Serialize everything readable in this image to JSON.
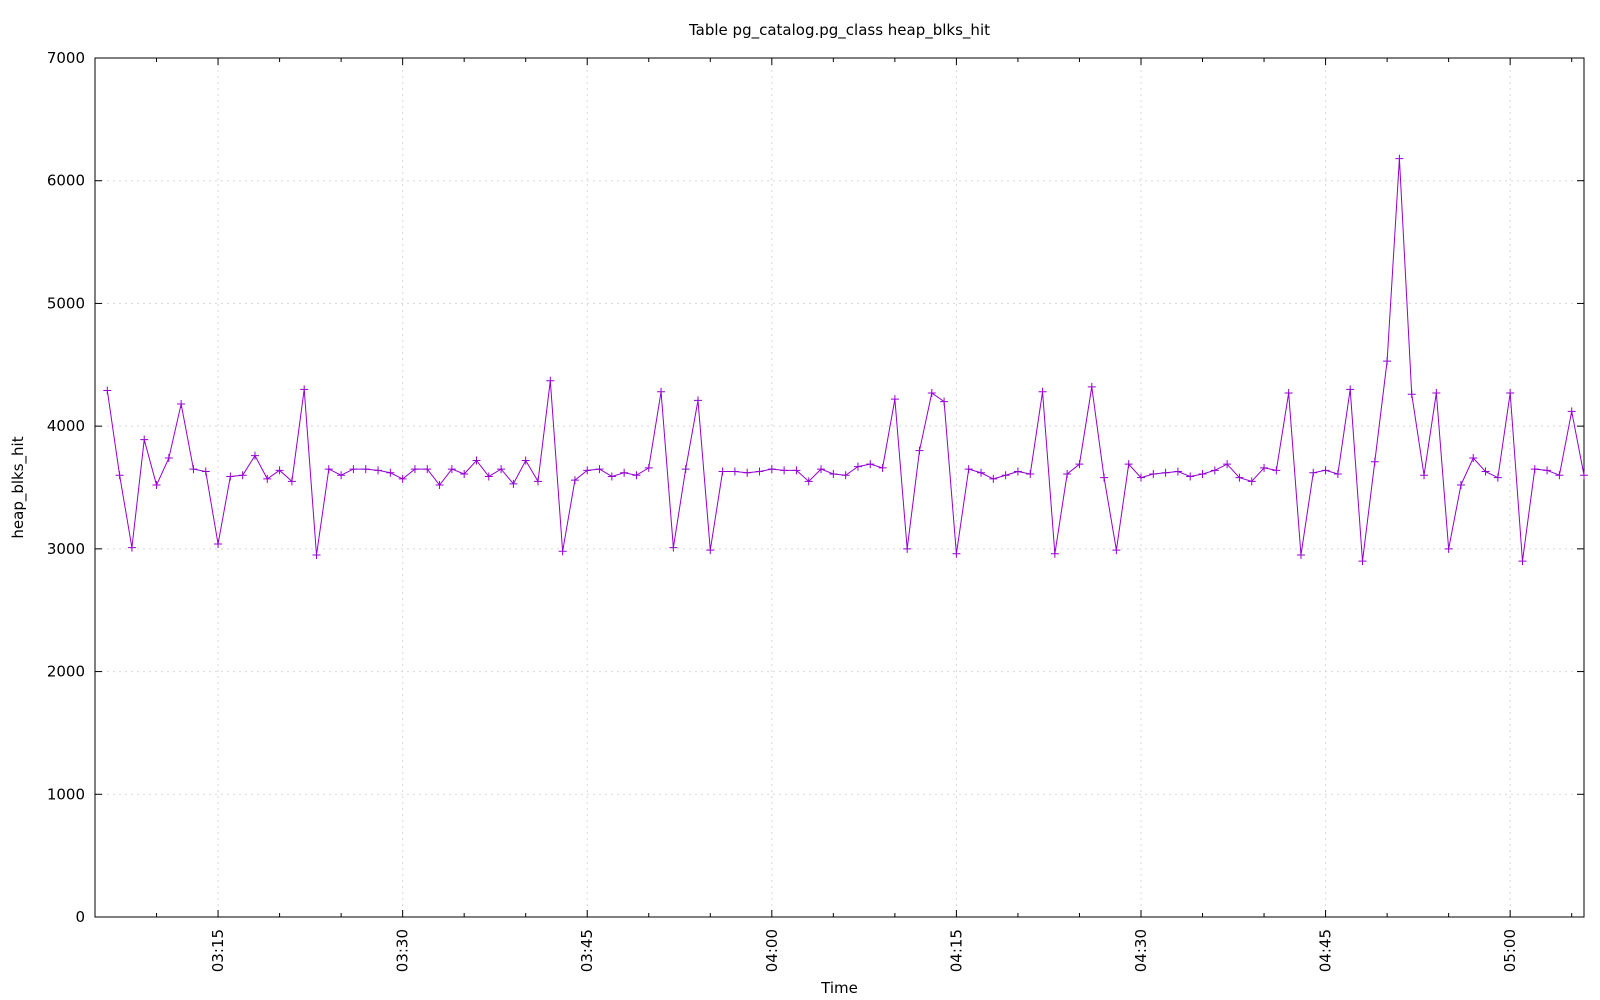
{
  "chart_data": {
    "type": "line",
    "title": "Table pg_catalog.pg_class heap_blks_hit",
    "xlabel": "Time",
    "ylabel": "heap_blks_hit",
    "ylim": [
      0,
      7000
    ],
    "xlim": [
      "03:05",
      "05:06"
    ],
    "yticks": [
      0,
      1000,
      2000,
      3000,
      4000,
      5000,
      6000,
      7000
    ],
    "xticks": [
      "03:15",
      "03:30",
      "03:45",
      "04:00",
      "04:15",
      "04:30",
      "04:45",
      "05:00"
    ],
    "grid": true,
    "legend": "none",
    "series_color": "#9400d3",
    "interval_minutes": 1,
    "start_time": "03:06",
    "series": [
      {
        "values": [
          4290,
          3600,
          3010,
          3890,
          3520,
          3740,
          4180,
          3650,
          3630,
          3040,
          3590,
          3600,
          3760,
          3570,
          3640,
          3550,
          4300,
          2950,
          3650,
          3600,
          3650,
          3650,
          3640,
          3620,
          3570,
          3650,
          3650,
          3520,
          3650,
          3610,
          3720,
          3590,
          3650,
          3530,
          3720,
          3550,
          4370,
          2980,
          3560,
          3640,
          3650,
          3590,
          3620,
          3600,
          3660,
          4280,
          3010,
          3650,
          4210,
          2990,
          3630,
          3630,
          3620,
          3630,
          3650,
          3640,
          3640,
          3550,
          3650,
          3610,
          3600,
          3670,
          3690,
          3660,
          4220,
          3000,
          3800,
          4270,
          4200,
          2960,
          3650,
          3620,
          3570,
          3600,
          3630,
          3610,
          4280,
          2960,
          3610,
          3690,
          4320,
          3580,
          2990,
          3690,
          3580,
          3610,
          3620,
          3630,
          3590,
          3610,
          3640,
          3690,
          3580,
          3550,
          3660,
          3640,
          4270,
          2950,
          3620,
          3640,
          3610,
          4300,
          2900,
          3710,
          4530,
          6180,
          4260,
          3600,
          4270,
          3000,
          3520,
          3740,
          3630,
          3580,
          4270,
          2900,
          3650,
          3640,
          3600,
          4120,
          3600
        ]
      }
    ]
  }
}
